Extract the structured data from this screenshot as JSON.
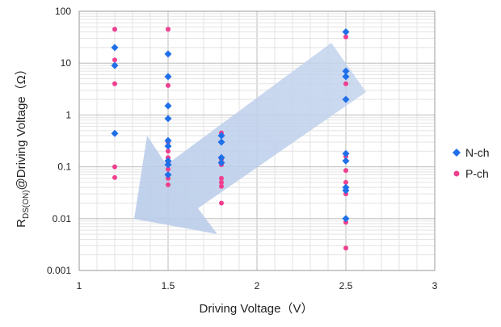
{
  "chart_data": {
    "type": "scatter",
    "title": "",
    "xlabel": "Driving Voltage（V）",
    "ylabel": {
      "prefix": "R",
      "subscript": "DS(ON)",
      "suffix": "@Driving Voltage（Ω）"
    },
    "x_scale": "linear",
    "y_scale": "log",
    "xlim": [
      1,
      3
    ],
    "ylim": [
      0.001,
      100
    ],
    "x_ticks": [
      "1",
      "1.5",
      "2",
      "2.5",
      "3"
    ],
    "y_ticks": [
      "0.001",
      "0.01",
      "0.1",
      "1",
      "10",
      "100"
    ],
    "grid": "major and minor",
    "legend_position": "right",
    "annotation": "light blue arrow pointing down-left",
    "series": [
      {
        "name": "N-ch",
        "marker": "diamond",
        "color": "#1f6fe8",
        "points": [
          [
            1.2,
            20
          ],
          [
            1.2,
            9
          ],
          [
            1.2,
            0.44
          ],
          [
            1.5,
            15
          ],
          [
            1.5,
            5.5
          ],
          [
            1.5,
            1.5
          ],
          [
            1.5,
            0.85
          ],
          [
            1.5,
            0.32
          ],
          [
            1.5,
            0.25
          ],
          [
            1.5,
            0.13
          ],
          [
            1.5,
            0.11
          ],
          [
            1.5,
            0.07
          ],
          [
            1.8,
            0.4
          ],
          [
            1.8,
            0.3
          ],
          [
            1.8,
            0.15
          ],
          [
            1.8,
            0.12
          ],
          [
            2.5,
            40
          ],
          [
            2.5,
            7
          ],
          [
            2.5,
            5.5
          ],
          [
            2.5,
            2
          ],
          [
            2.5,
            0.18
          ],
          [
            2.5,
            0.13
          ],
          [
            2.5,
            0.04
          ],
          [
            2.5,
            0.035
          ],
          [
            2.5,
            0.01
          ]
        ]
      },
      {
        "name": "P-ch",
        "marker": "circle",
        "color": "#ef3f8f",
        "points": [
          [
            1.2,
            45
          ],
          [
            1.2,
            11.5
          ],
          [
            1.2,
            4
          ],
          [
            1.2,
            0.1
          ],
          [
            1.2,
            0.062
          ],
          [
            1.5,
            45
          ],
          [
            1.5,
            3.7
          ],
          [
            1.5,
            0.3
          ],
          [
            1.5,
            0.2
          ],
          [
            1.5,
            0.15
          ],
          [
            1.5,
            0.12
          ],
          [
            1.5,
            0.09
          ],
          [
            1.5,
            0.06
          ],
          [
            1.5,
            0.045
          ],
          [
            1.8,
            0.45
          ],
          [
            1.8,
            0.14
          ],
          [
            1.8,
            0.11
          ],
          [
            1.8,
            0.06
          ],
          [
            1.8,
            0.05
          ],
          [
            1.8,
            0.042
          ],
          [
            1.8,
            0.02
          ],
          [
            2.5,
            32
          ],
          [
            2.5,
            4
          ],
          [
            2.5,
            0.16
          ],
          [
            2.5,
            0.085
          ],
          [
            2.5,
            0.05
          ],
          [
            2.5,
            0.03
          ],
          [
            2.5,
            0.0085
          ],
          [
            2.5,
            0.0027
          ]
        ]
      }
    ]
  }
}
